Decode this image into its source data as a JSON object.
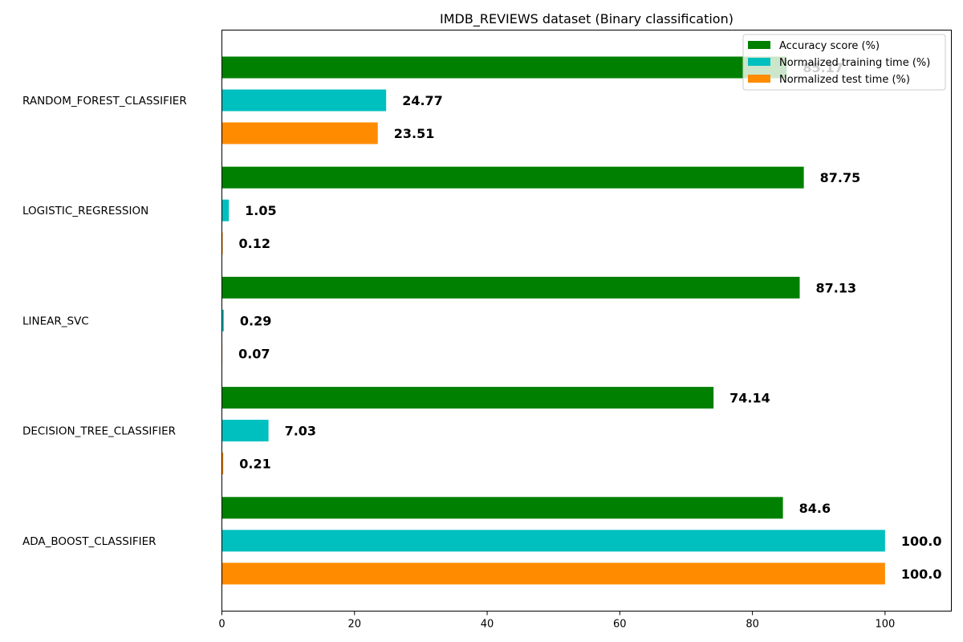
{
  "chart_data": {
    "type": "bar",
    "orientation": "horizontal",
    "title": "IMDB_REVIEWS dataset (Binary classification)",
    "xlabel": "",
    "ylabel": "",
    "xlim": [
      0,
      110
    ],
    "x_ticks": [
      0,
      20,
      40,
      60,
      80,
      100
    ],
    "grid": false,
    "legend_position": "top-right",
    "categories": [
      "RANDOM_FOREST_CLASSIFIER",
      "LOGISTIC_REGRESSION",
      "LINEAR_SVC",
      "DECISION_TREE_CLASSIFIER",
      "ADA_BOOST_CLASSIFIER"
    ],
    "series": [
      {
        "name": "Accuracy score (%)",
        "color": "#008000",
        "values": [
          85.17,
          87.75,
          87.13,
          74.14,
          84.6
        ],
        "labels": [
          "85.17",
          "87.75",
          "87.13",
          "74.14",
          "84.6"
        ]
      },
      {
        "name": "Normalized training time (%)",
        "color": "#00BFBF",
        "values": [
          24.77,
          1.05,
          0.29,
          7.03,
          100.0
        ],
        "labels": [
          "24.77",
          "1.05",
          "0.29",
          "7.03",
          "100.0"
        ]
      },
      {
        "name": "Normalized test time (%)",
        "color": "#FF8C00",
        "values": [
          23.51,
          0.12,
          0.07,
          0.21,
          100.0
        ],
        "labels": [
          "23.51",
          "0.12",
          "0.07",
          "0.21",
          "100.0"
        ]
      }
    ]
  }
}
